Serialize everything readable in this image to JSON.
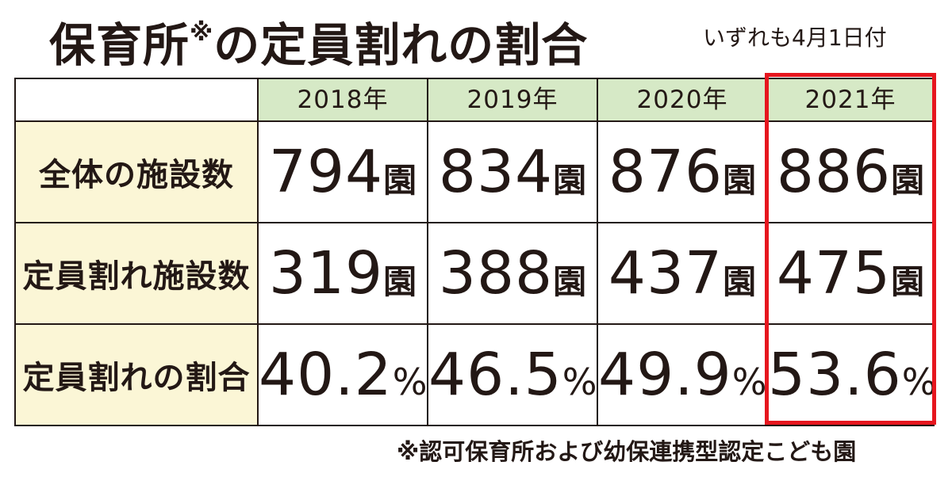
{
  "title_main": "保育所",
  "title_mark": "※",
  "title_rest": "の定員割れの割合",
  "subtitle": "いずれも4月1日付",
  "footnote": "※認可保育所および幼保連携型認定こども園",
  "colors": {
    "header_bg": "#d6e9c6",
    "label_bg": "#fbf6d6",
    "highlight_border": "#e6161e",
    "text": "#231815"
  },
  "chart_data": {
    "type": "table",
    "title": "保育所※の定員割れの割合",
    "columns": [
      "2018年",
      "2019年",
      "2020年",
      "2021年"
    ],
    "highlighted_column": "2021年",
    "rows": [
      {
        "label": "全体の施設数",
        "unit": "園",
        "values": [
          "794",
          "834",
          "876",
          "886"
        ]
      },
      {
        "label": "定員割れ施設数",
        "unit": "園",
        "values": [
          "319",
          "388",
          "437",
          "475"
        ]
      },
      {
        "label": "定員割れの割合",
        "unit": "%",
        "values": [
          "40.2",
          "46.5",
          "49.9",
          "53.6"
        ]
      }
    ]
  }
}
